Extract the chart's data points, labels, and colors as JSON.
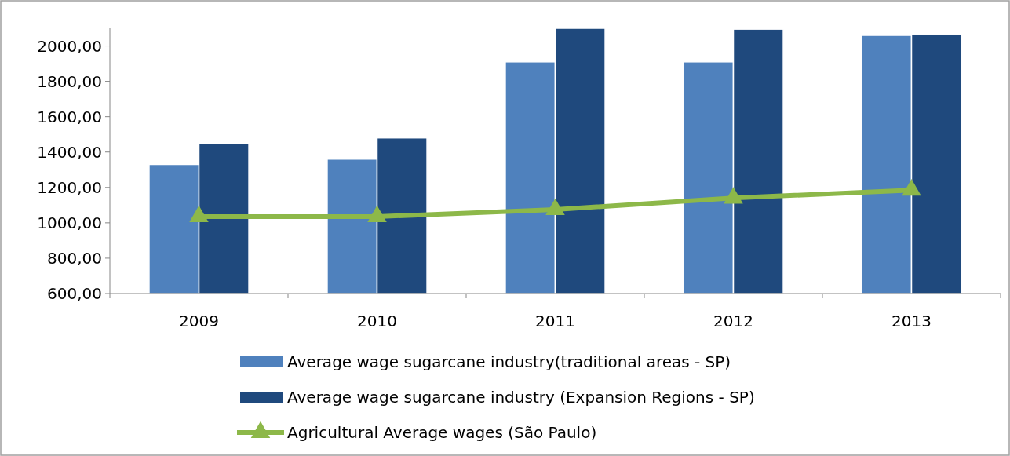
{
  "chart_data": {
    "type": "bar",
    "categories": [
      "2009",
      "2010",
      "2011",
      "2012",
      "2013"
    ],
    "series": [
      {
        "name": "Average wage sugarcane industry(traditional areas - SP)",
        "color": "#4f81bd",
        "values": [
          1330,
          1360,
          1910,
          1910,
          2060
        ]
      },
      {
        "name": "Average wage sugarcane industry (Expansion Regions - SP)",
        "color": "#1f497d",
        "values": [
          1450,
          1480,
          2100,
          2095,
          2065
        ]
      },
      {
        "name": "Agricultural Average wages (São Paulo)",
        "type": "line",
        "color": "#8db849",
        "values": [
          1035,
          1035,
          1075,
          1140,
          1185
        ],
        "marker": "triangle"
      }
    ],
    "ylim": [
      600,
      2100
    ],
    "yticks": [
      {
        "value": 600,
        "label": "600,00"
      },
      {
        "value": 800,
        "label": "800,00"
      },
      {
        "value": 1000,
        "label": "1000,00"
      },
      {
        "value": 1200,
        "label": "1200,00"
      },
      {
        "value": 1400,
        "label": "1400,00"
      },
      {
        "value": 1600,
        "label": "1600,00"
      },
      {
        "value": 1800,
        "label": "1800,00"
      },
      {
        "value": 2000,
        "label": "2000,00"
      }
    ],
    "grid": false,
    "legend": "bottom"
  }
}
